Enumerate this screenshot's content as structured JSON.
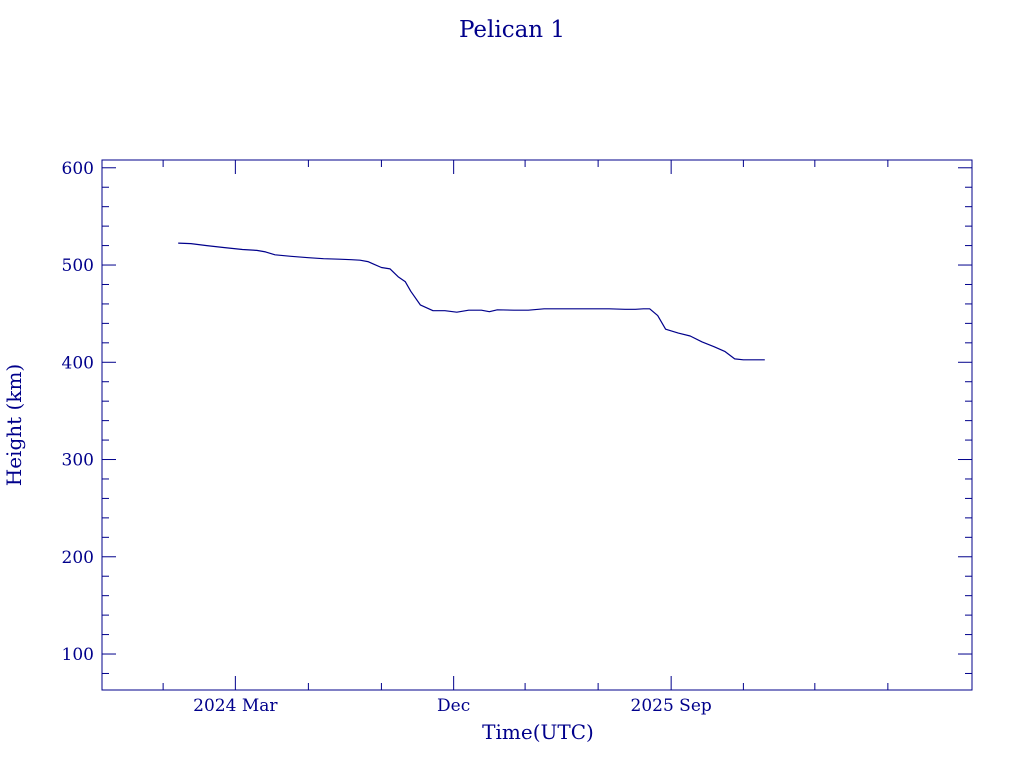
{
  "colors": {
    "ink": "#00008b",
    "background": "#ffffff"
  },
  "chart_data": {
    "type": "line",
    "title": "Pelican 1",
    "xlabel": "Time(UTC)",
    "ylabel": "Height (km)",
    "xlim": [
      "2023-09-15",
      "2026-09-15"
    ],
    "ylim": [
      63,
      608
    ],
    "grid": false,
    "x_tick_labels": [
      {
        "x": "2024-03-01",
        "label": "2024 Mar"
      },
      {
        "x": "2024-12-01",
        "label": "Dec"
      },
      {
        "x": "2025-09-01",
        "label": "2025 Sep"
      }
    ],
    "y_ticks": [
      100,
      200,
      300,
      400,
      500,
      600
    ],
    "series": [
      {
        "x": [
          "2023-12-20",
          "2024-01-05",
          "2024-01-25",
          "2024-02-15",
          "2024-03-10",
          "2024-03-28",
          "2024-04-08",
          "2024-04-20",
          "2024-05-10",
          "2024-06-01",
          "2024-06-20",
          "2024-07-10",
          "2024-07-25",
          "2024-08-05",
          "2024-08-15",
          "2024-08-22",
          "2024-09-01",
          "2024-09-12",
          "2024-09-22",
          "2024-10-01",
          "2024-10-08",
          "2024-10-20",
          "2024-11-05",
          "2024-11-20",
          "2024-12-05",
          "2024-12-20",
          "2025-01-05",
          "2025-01-15",
          "2025-01-25",
          "2025-02-15",
          "2025-03-05",
          "2025-03-25",
          "2025-04-15",
          "2025-05-05",
          "2025-05-25",
          "2025-06-15",
          "2025-07-05",
          "2025-07-18",
          "2025-07-28",
          "2025-08-05",
          "2025-08-15",
          "2025-08-25",
          "2025-09-10",
          "2025-09-25",
          "2025-10-10",
          "2025-10-25",
          "2025-11-08",
          "2025-11-20",
          "2025-12-01",
          "2025-12-15",
          "2025-12-28"
        ],
        "y": [
          522.5,
          522,
          520,
          518,
          516,
          515,
          513.5,
          510.5,
          509,
          507.5,
          506.5,
          506,
          505.5,
          505,
          503.5,
          501,
          497.5,
          496,
          488,
          483,
          473,
          459,
          453,
          453,
          451.5,
          453.5,
          453.5,
          452,
          454,
          453.5,
          453.5,
          455,
          455,
          455,
          455,
          455,
          454.5,
          454.5,
          455,
          455,
          448,
          434,
          430,
          427,
          421,
          416,
          411,
          403.5,
          402.5,
          402.5,
          402.5
        ]
      }
    ]
  }
}
